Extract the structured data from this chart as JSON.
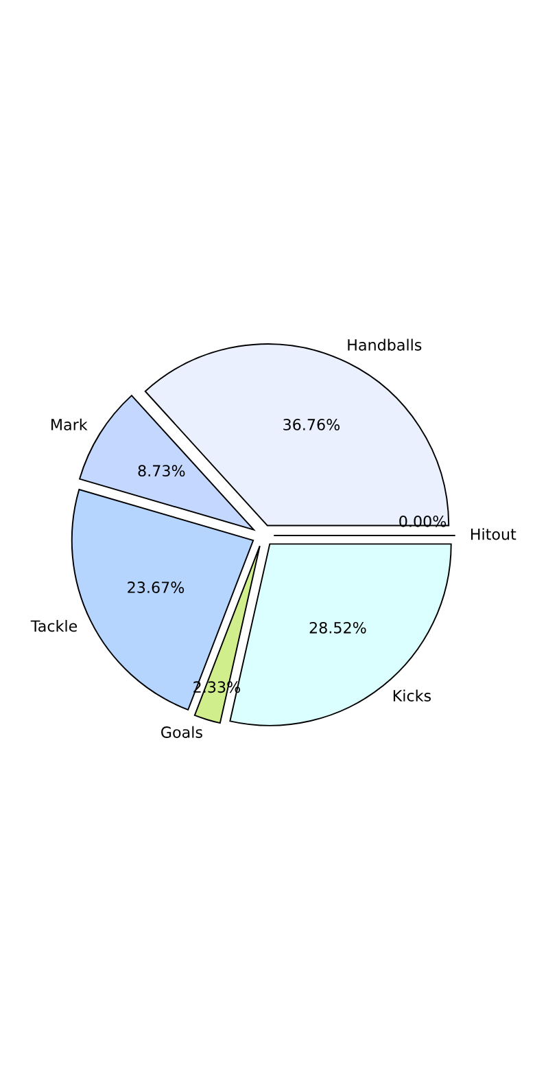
{
  "chart_data": {
    "type": "pie",
    "categories": [
      "Handballs",
      "Mark",
      "Tackle",
      "Goals",
      "Kicks",
      "Hitout"
    ],
    "values": [
      36.76,
      8.73,
      23.67,
      2.33,
      28.52,
      0.0
    ],
    "value_labels": [
      "36.76%",
      "8.73%",
      "23.67%",
      "2.33%",
      "28.52%",
      "0.00%"
    ],
    "colors": [
      "#eaf0fe",
      "#c4d8ff",
      "#b5d5ff",
      "#d0ee8c",
      "#dbfffe",
      "#dddddd"
    ],
    "legend": false
  }
}
